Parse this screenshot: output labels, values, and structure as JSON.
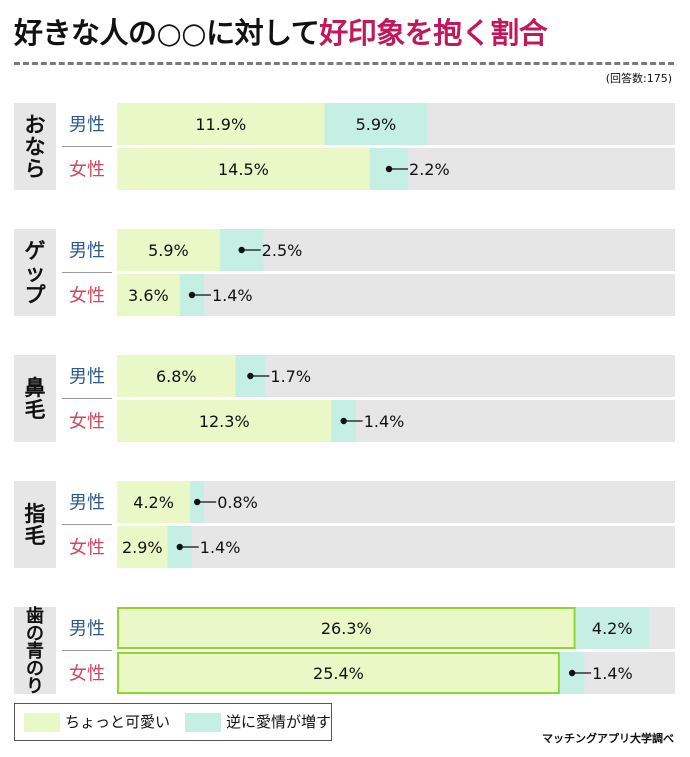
{
  "header": {
    "title_part1": "好きな人の○○に対して",
    "title_part2": "好印象を抱く割合",
    "note": "(回答数:175)"
  },
  "legend": {
    "items": [
      {
        "label": "ちょっと可愛い",
        "color": "#eaf7c6"
      },
      {
        "label": "逆に愛情が増す",
        "color": "#c5efe2"
      }
    ]
  },
  "source": "マッチングアプリ大学調べ",
  "colors": {
    "cute": "#eaf7c6",
    "love": "#c5efe2",
    "track": "#e6e6e6",
    "category_bg": "#e6e6e6",
    "male_text": "#2e5b8f",
    "female_text": "#d6455d",
    "highlight_border": "#8ed630"
  },
  "chart_data": {
    "type": "bar",
    "stacked": true,
    "orientation": "horizontal",
    "xlim": [
      0,
      32
    ],
    "series_names": [
      "ちょっと可愛い",
      "逆に愛情が増す"
    ],
    "categories": [
      {
        "name": "おなら",
        "rows": [
          {
            "gender": "男性",
            "cute": 11.9,
            "love": 5.9,
            "cute_label": "11.9%",
            "love_label": "5.9%"
          },
          {
            "gender": "女性",
            "cute": 14.5,
            "love": 2.2,
            "cute_label": "14.5%",
            "love_label": "2.2%"
          }
        ]
      },
      {
        "name": "ゲップ",
        "rows": [
          {
            "gender": "男性",
            "cute": 5.9,
            "love": 2.5,
            "cute_label": "5.9%",
            "love_label": "2.5%"
          },
          {
            "gender": "女性",
            "cute": 3.6,
            "love": 1.4,
            "cute_label": "3.6%",
            "love_label": "1.4%"
          }
        ]
      },
      {
        "name": "鼻毛",
        "rows": [
          {
            "gender": "男性",
            "cute": 6.8,
            "love": 1.7,
            "cute_label": "6.8%",
            "love_label": "1.7%"
          },
          {
            "gender": "女性",
            "cute": 12.3,
            "love": 1.4,
            "cute_label": "12.3%",
            "love_label": "1.4%"
          }
        ]
      },
      {
        "name": "指毛",
        "rows": [
          {
            "gender": "男性",
            "cute": 4.2,
            "love": 0.8,
            "cute_label": "4.2%",
            "love_label": "0.8%"
          },
          {
            "gender": "女性",
            "cute": 2.9,
            "love": 1.4,
            "cute_label": "2.9%",
            "love_label": "1.4%"
          }
        ]
      },
      {
        "name": "歯の青のり",
        "highlight": true,
        "rows": [
          {
            "gender": "男性",
            "cute": 26.3,
            "love": 4.2,
            "cute_label": "26.3%",
            "love_label": "4.2%"
          },
          {
            "gender": "女性",
            "cute": 25.4,
            "love": 1.4,
            "cute_label": "25.4%",
            "love_label": "1.4%"
          }
        ]
      }
    ]
  }
}
